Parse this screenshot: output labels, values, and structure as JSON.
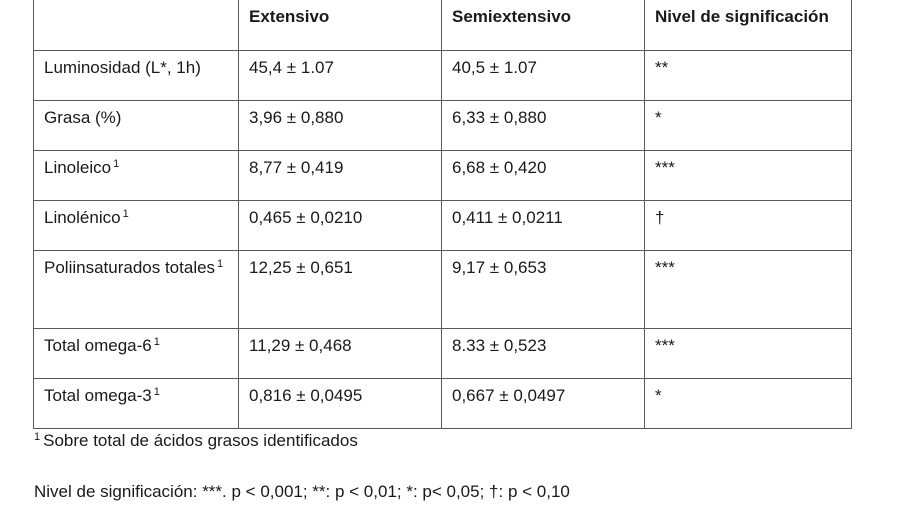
{
  "table": {
    "headers": [
      "",
      "Extensivo",
      "Semiextensivo",
      "Nivel de significación"
    ],
    "rows": [
      {
        "label": "Luminosidad (L*, 1h)",
        "sup": "",
        "extensivo": "45,4 ± 1.07",
        "semiextensivo": "40,5 ± 1.07",
        "significacion": "**"
      },
      {
        "label": "Grasa (%)",
        "sup": "",
        "extensivo": "3,96 ± 0,880",
        "semiextensivo": "6,33 ± 0,880",
        "significacion": "*"
      },
      {
        "label": "Linoleico",
        "sup": "1",
        "extensivo": "8,77 ± 0,419",
        "semiextensivo": "6,68 ± 0,420",
        "significacion": "***"
      },
      {
        "label": "Linolénico",
        "sup": "1",
        "extensivo": "0,465 ± 0,0210",
        "semiextensivo": "0,411 ± 0,0211",
        "significacion": "†"
      },
      {
        "label": "Poliinsaturados totales",
        "sup": "1",
        "extensivo": "12,25 ± 0,651",
        "semiextensivo": "9,17 ± 0,653",
        "significacion": "***"
      },
      {
        "label": "Total omega-6",
        "sup": "1",
        "extensivo": "11,29 ± 0,468",
        "semiextensivo": "8.33 ± 0,523",
        "significacion": "***"
      },
      {
        "label": "Total omega-3",
        "sup": "1",
        "extensivo": "0,816 ± 0,0495",
        "semiextensivo": "0,667 ± 0,0497",
        "significacion": "*"
      }
    ]
  },
  "footnote": {
    "marker": "1",
    "text": "Sobre total de ácidos grasos identificados"
  },
  "legend": {
    "text": "Nivel de significación: ***. p < 0,001; **: p < 0,01; *: p< 0,05; †: p < 0,10"
  }
}
